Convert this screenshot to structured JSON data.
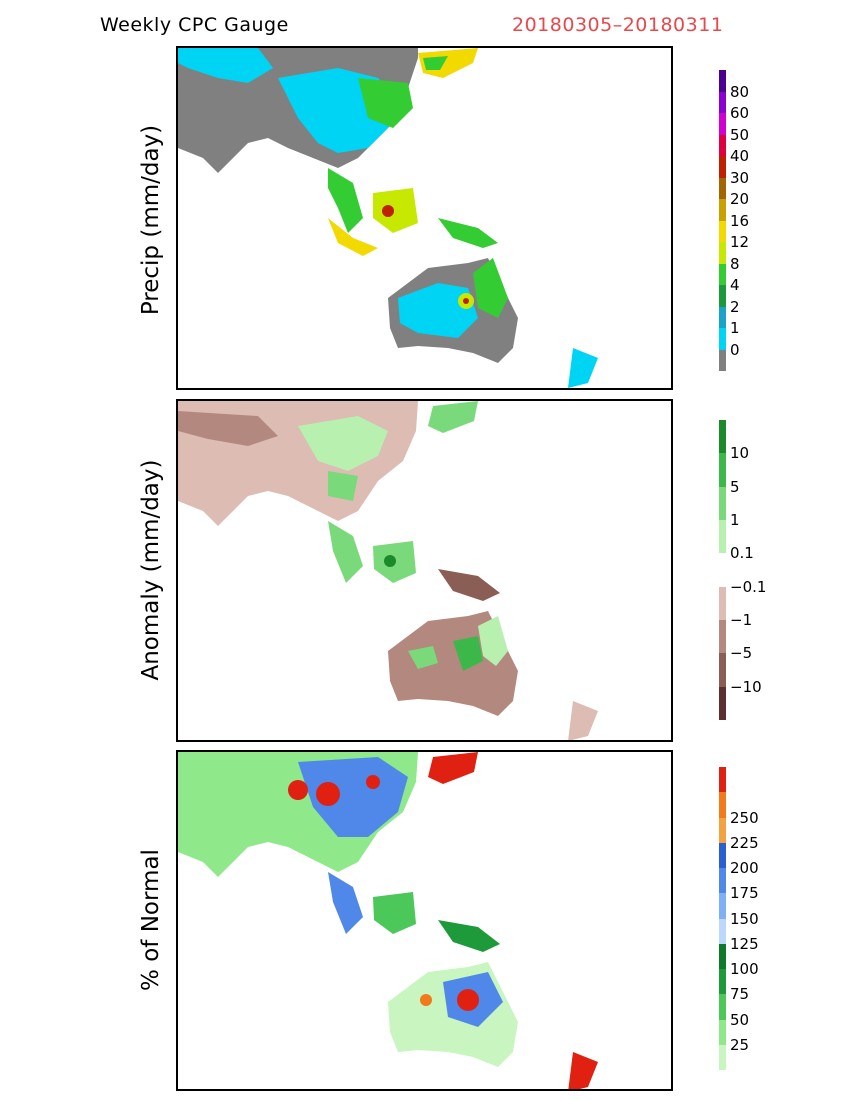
{
  "header": {
    "title": "Weekly CPC Gauge",
    "date_range": "20180305–20180311",
    "date_color": "#e8484c"
  },
  "panels": [
    {
      "ylabel": "Precip (mm/day)",
      "colorbar": {
        "colors": [
          "#808080",
          "#00d4f5",
          "#1aa3c8",
          "#1c9a3b",
          "#33cc33",
          "#c7e800",
          "#f2d900",
          "#c8a000",
          "#a26500",
          "#c02000",
          "#e00040",
          "#d000d0",
          "#8a00d0",
          "#4b0090"
        ],
        "labels": [
          "0",
          "1",
          "2",
          "4",
          "8",
          "12",
          "16",
          "20",
          "30",
          "40",
          "50",
          "60",
          "80"
        ]
      }
    },
    {
      "ylabel": "Anomaly (mm/day)",
      "colorbar": {
        "colors": [
          "#5a3030",
          "#8b5e55",
          "#b3897f",
          "#dcbcb3",
          "#ffffff",
          "#b8f0b0",
          "#7ad97a",
          "#3cb84a",
          "#1a8a2a"
        ],
        "labels": [
          "−10",
          "−5",
          "−1",
          "−0.1",
          "0.1",
          "1",
          "5",
          "10"
        ]
      }
    },
    {
      "ylabel": "% of Normal",
      "colorbar": {
        "colors": [
          "#c8f5c0",
          "#8fe88a",
          "#4cc75a",
          "#1e9a3a",
          "#0f7a2a",
          "#bcd8ff",
          "#7fb0f5",
          "#4f88e8",
          "#2a5fd0",
          "#f2a340",
          "#f27a1a",
          "#e02010"
        ],
        "labels": [
          "25",
          "50",
          "75",
          "100",
          "125",
          "150",
          "175",
          "200",
          "225",
          "250"
        ]
      }
    }
  ]
}
